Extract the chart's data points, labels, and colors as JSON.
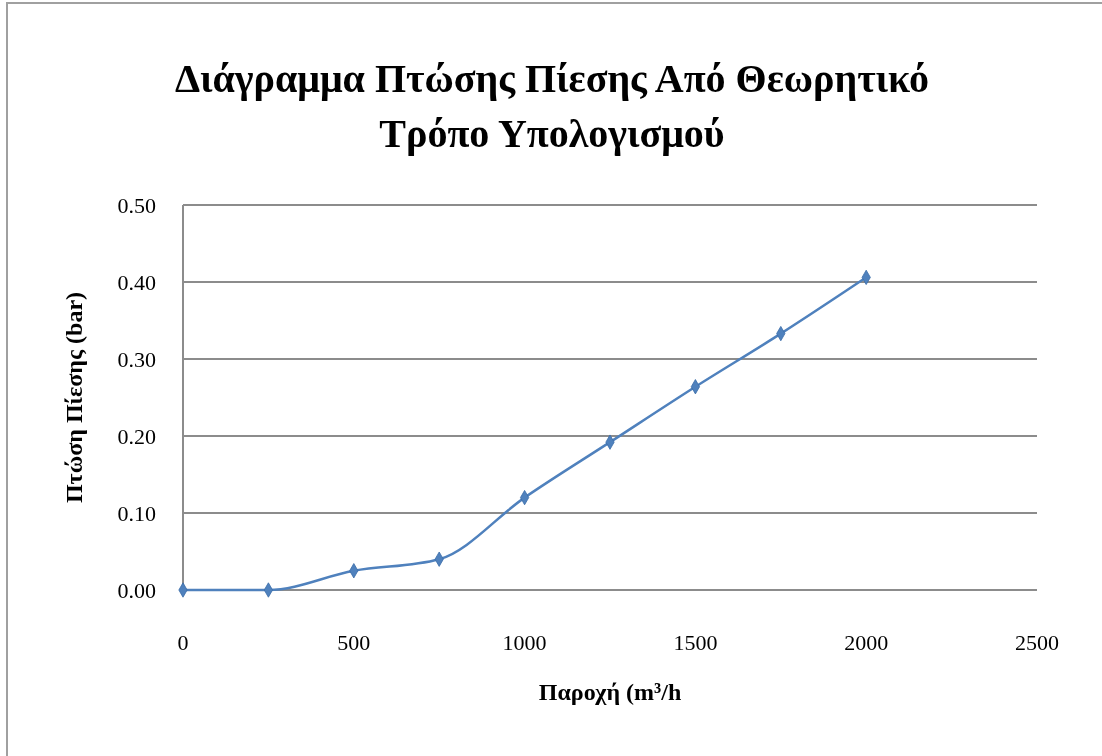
{
  "chart_data": {
    "type": "line",
    "title": "Διάγραμμα Πτώσης Πίεσης Από Θεωρητικό Τρόπο Υπολογισμού",
    "xlabel": "Παροχή (m³/h",
    "ylabel": "Πτώση Πίεσης (bar)",
    "x": [
      0,
      250,
      500,
      750,
      1000,
      1250,
      1500,
      1750,
      2000
    ],
    "series": [
      {
        "color": "#4f81bd",
        "values": [
          0,
          0,
          0.025,
          0.04,
          0.12,
          0.192,
          0.264,
          0.333,
          0.406
        ]
      }
    ],
    "xlim": [
      0,
      2500
    ],
    "xticks": [
      0,
      500,
      1000,
      1500,
      2000,
      2500
    ],
    "ylim": [
      0,
      0.5
    ],
    "yticks": [
      {
        "value": 0,
        "label": "0.00"
      },
      {
        "value": 0.1,
        "label": "0.10"
      },
      {
        "value": 0.2,
        "label": "0.20"
      },
      {
        "value": 0.3,
        "label": "0.30"
      },
      {
        "value": 0.4,
        "label": "0.40"
      },
      {
        "value": 0.5,
        "label": "0.50"
      }
    ],
    "grid": "y",
    "marker": "diamond"
  }
}
